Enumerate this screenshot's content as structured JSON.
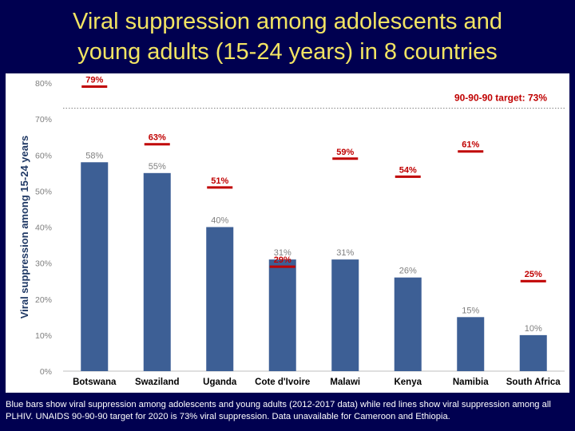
{
  "title_line1": "Viral suppression among adolescents and",
  "title_line2": "young adults (15-24 years) in 8 countries",
  "footnote": "Blue bars show viral suppression among adolescents and young adults (2012-2017 data) while red lines show viral suppression among all PLHIV. UNAIDS 90-90-90 target for 2020 is 73% viral suppression. Data unavailable for Cameroon and Ethiopia.",
  "colors": {
    "bar": "#3d5f95",
    "red_line": "#c00000",
    "title": "#f2e463",
    "background": "#000050"
  },
  "chart_data": {
    "type": "bar",
    "title": "",
    "xlabel": "",
    "ylabel": "Viral suppression among 15-24 years",
    "ylim": [
      0,
      80
    ],
    "yticks": [
      0,
      10,
      20,
      30,
      40,
      50,
      60,
      70,
      80
    ],
    "ytick_labels": [
      "0%",
      "10%",
      "20%",
      "30%",
      "40%",
      "50%",
      "60%",
      "70%",
      "80%"
    ],
    "grid": false,
    "categories": [
      "Botswana",
      "Swaziland",
      "Uganda",
      "Cote d'Ivoire",
      "Malawi",
      "Kenya",
      "Namibia",
      "South Africa"
    ],
    "series": [
      {
        "values": [
          58,
          55,
          40,
          31,
          31,
          26,
          15,
          10
        ],
        "labels": [
          "58%",
          "55%",
          "40%",
          "31%",
          "31%",
          "26%",
          "15%",
          "10%"
        ]
      },
      {
        "values": [
          79,
          63,
          51,
          29,
          59,
          54,
          61,
          25
        ],
        "labels": [
          "79%",
          "63%",
          "51%",
          "29%",
          "59%",
          "54%",
          "61%",
          "25%"
        ]
      }
    ],
    "reference_line": {
      "value": 73,
      "label": "90-90-90 target: 73%"
    }
  }
}
